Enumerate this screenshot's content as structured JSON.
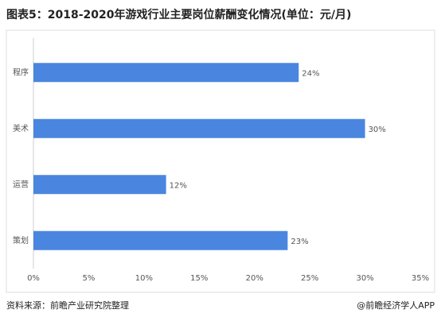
{
  "chart_data": {
    "type": "bar",
    "orientation": "horizontal",
    "title": "图表5：2018-2020年游戏行业主要岗位薪酬变化情况(单位：元/月)",
    "categories": [
      "程序",
      "美术",
      "运营",
      "策划"
    ],
    "values": [
      24,
      30,
      12,
      23
    ],
    "value_labels": [
      "24%",
      "30%",
      "12%",
      "23%"
    ],
    "color": "#4a86e0",
    "xlim": [
      0,
      35
    ],
    "xticks": [
      {
        "value": 0,
        "label": "0%"
      },
      {
        "value": 5,
        "label": "5%"
      },
      {
        "value": 10,
        "label": "10%"
      },
      {
        "value": 15,
        "label": "15%"
      },
      {
        "value": 20,
        "label": "20%"
      },
      {
        "value": 25,
        "label": "25%"
      },
      {
        "value": 30,
        "label": "30%"
      },
      {
        "value": 35,
        "label": "35%"
      }
    ],
    "grid": false,
    "source": "资料来源：前瞻产业研究院整理",
    "credit": "@前瞻经济学人APP"
  }
}
